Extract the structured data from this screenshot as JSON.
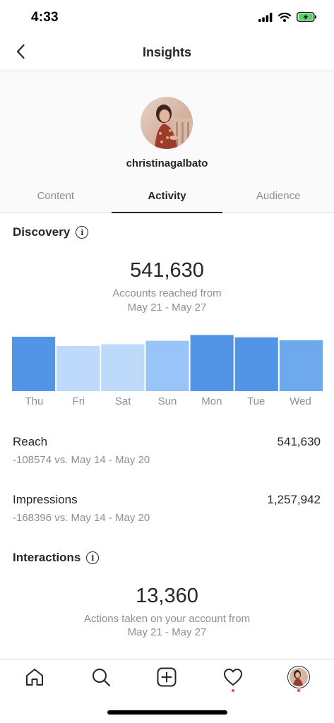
{
  "status_bar": {
    "time": "4:33",
    "icons": [
      "cellular-signal-icon",
      "wifi-icon",
      "battery-charging-icon"
    ]
  },
  "header": {
    "title": "Insights",
    "back_icon": "chevron-left-icon"
  },
  "profile": {
    "username": "christinagalbato"
  },
  "tabs": [
    {
      "label": "Content",
      "active": false
    },
    {
      "label": "Activity",
      "active": true
    },
    {
      "label": "Audience",
      "active": false
    }
  ],
  "discovery": {
    "title": "Discovery",
    "info_icon": "info-icon",
    "accounts_reached": "541,630",
    "caption_line1": "Accounts reached from",
    "caption_line2": "May 21 - May 27",
    "chart_data": {
      "type": "bar",
      "categories": [
        "Thu",
        "Fri",
        "Sat",
        "Sun",
        "Mon",
        "Tue",
        "Wed"
      ],
      "values": [
        0.94,
        0.78,
        0.81,
        0.87,
        0.97,
        0.93,
        0.88
      ],
      "colors": [
        "#5295e6",
        "#bddafa",
        "#bddafa",
        "#98c4f7",
        "#5295e6",
        "#5295e6",
        "#6ea9ee"
      ],
      "title": "",
      "xlabel": "",
      "ylabel": "",
      "ylim": [
        0,
        1
      ]
    },
    "reach": {
      "label": "Reach",
      "value": "541,630",
      "compare": "-108574 vs. May 14 - May 20"
    },
    "impressions": {
      "label": "Impressions",
      "value": "1,257,942",
      "compare": "-168396 vs. May 14 - May 20"
    }
  },
  "interactions": {
    "title": "Interactions",
    "info_icon": "info-icon",
    "actions_taken": "13,360",
    "caption_line1": "Actions taken on your account from",
    "caption_line2": "May 21 - May 27"
  },
  "bottom_nav": {
    "items": [
      "home-icon",
      "search-icon",
      "add-post-icon",
      "activity-heart-icon",
      "profile-avatar"
    ],
    "notification_color": "#ed4956"
  },
  "colors": {
    "text_primary": "#262626",
    "text_secondary": "#8e8e8e",
    "divider": "#dbdbdb",
    "accent_blue": "#5295e6"
  }
}
